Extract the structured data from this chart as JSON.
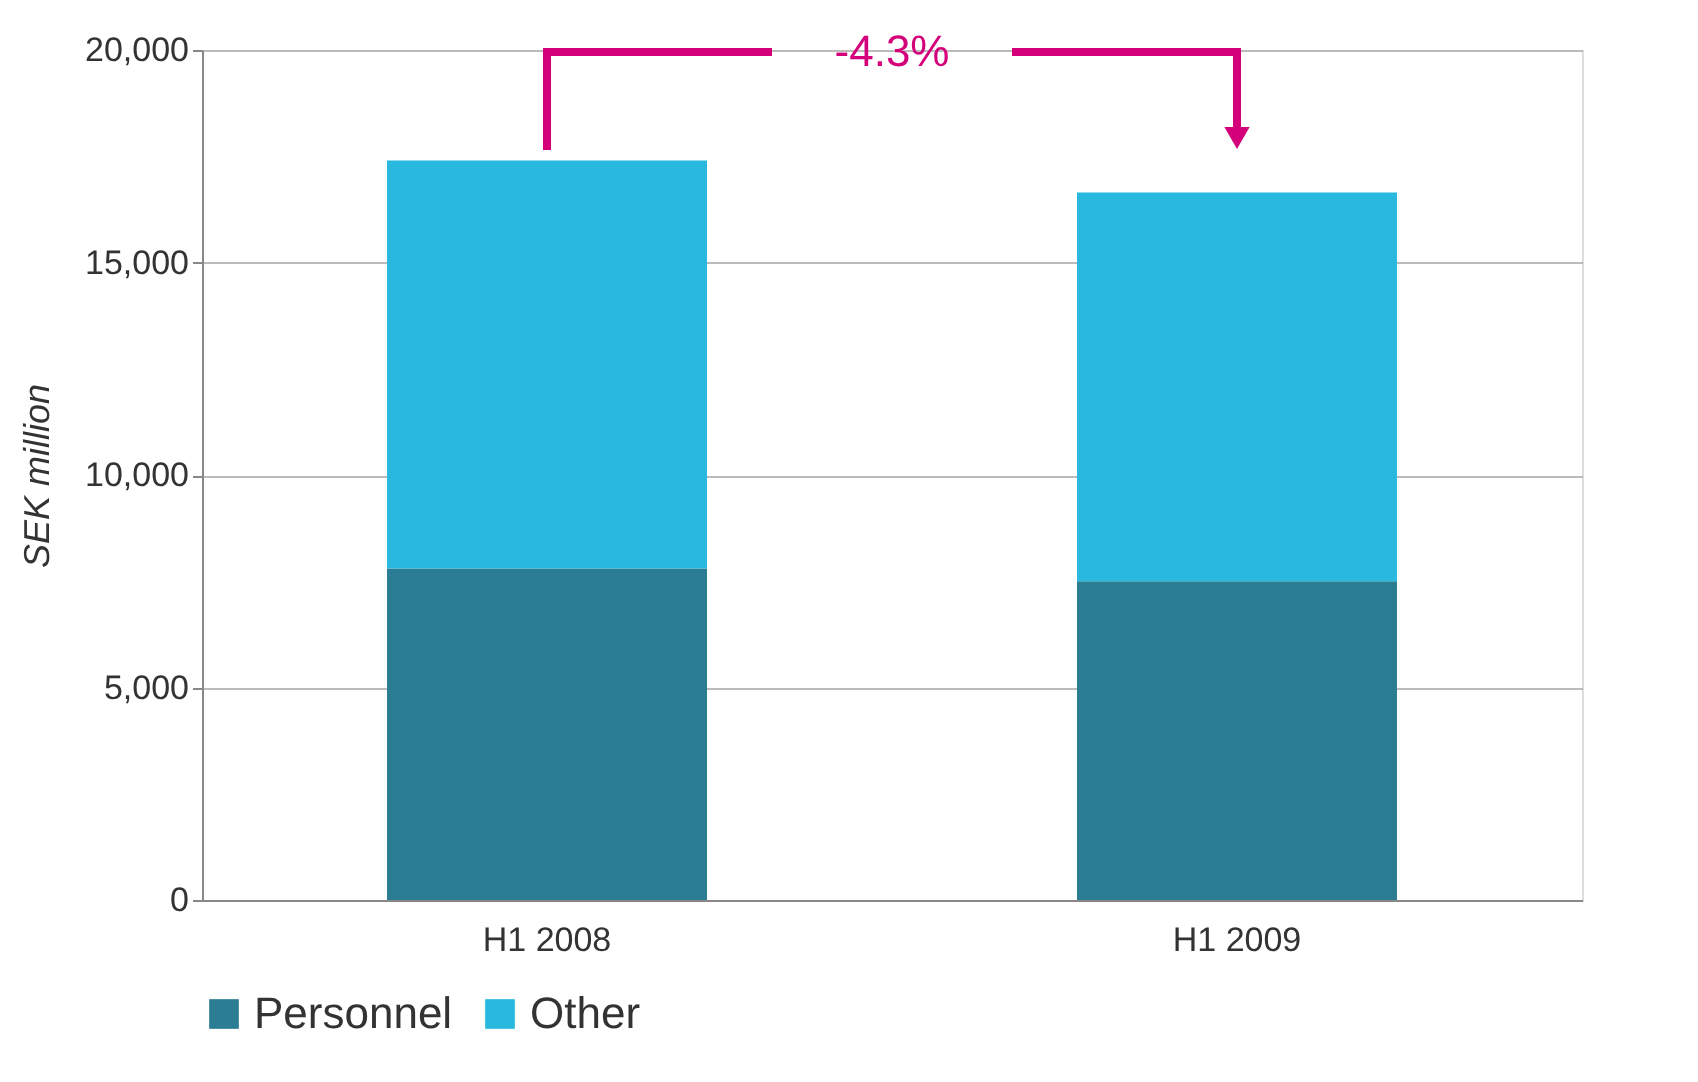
{
  "chart_data": {
    "type": "bar",
    "stacked": true,
    "ylabel": "SEK million",
    "categories": [
      "H1 2008",
      "H1 2009"
    ],
    "series": [
      {
        "name": "Personnel",
        "color": "#2a7d92",
        "values": [
          7800,
          7500
        ]
      },
      {
        "name": "Other",
        "color": "#29b8de",
        "values": [
          9600,
          9150
        ]
      }
    ],
    "ylim": [
      0,
      20000
    ],
    "yticks": [
      {
        "value": 0,
        "label": "0"
      },
      {
        "value": 5000,
        "label": "5,000"
      },
      {
        "value": 10000,
        "label": "10,000"
      },
      {
        "value": 15000,
        "label": "15,000"
      },
      {
        "value": 20000,
        "label": "20,000"
      }
    ],
    "grid": "y",
    "legend": "bottom",
    "annotations": [
      "-4.3%"
    ]
  }
}
